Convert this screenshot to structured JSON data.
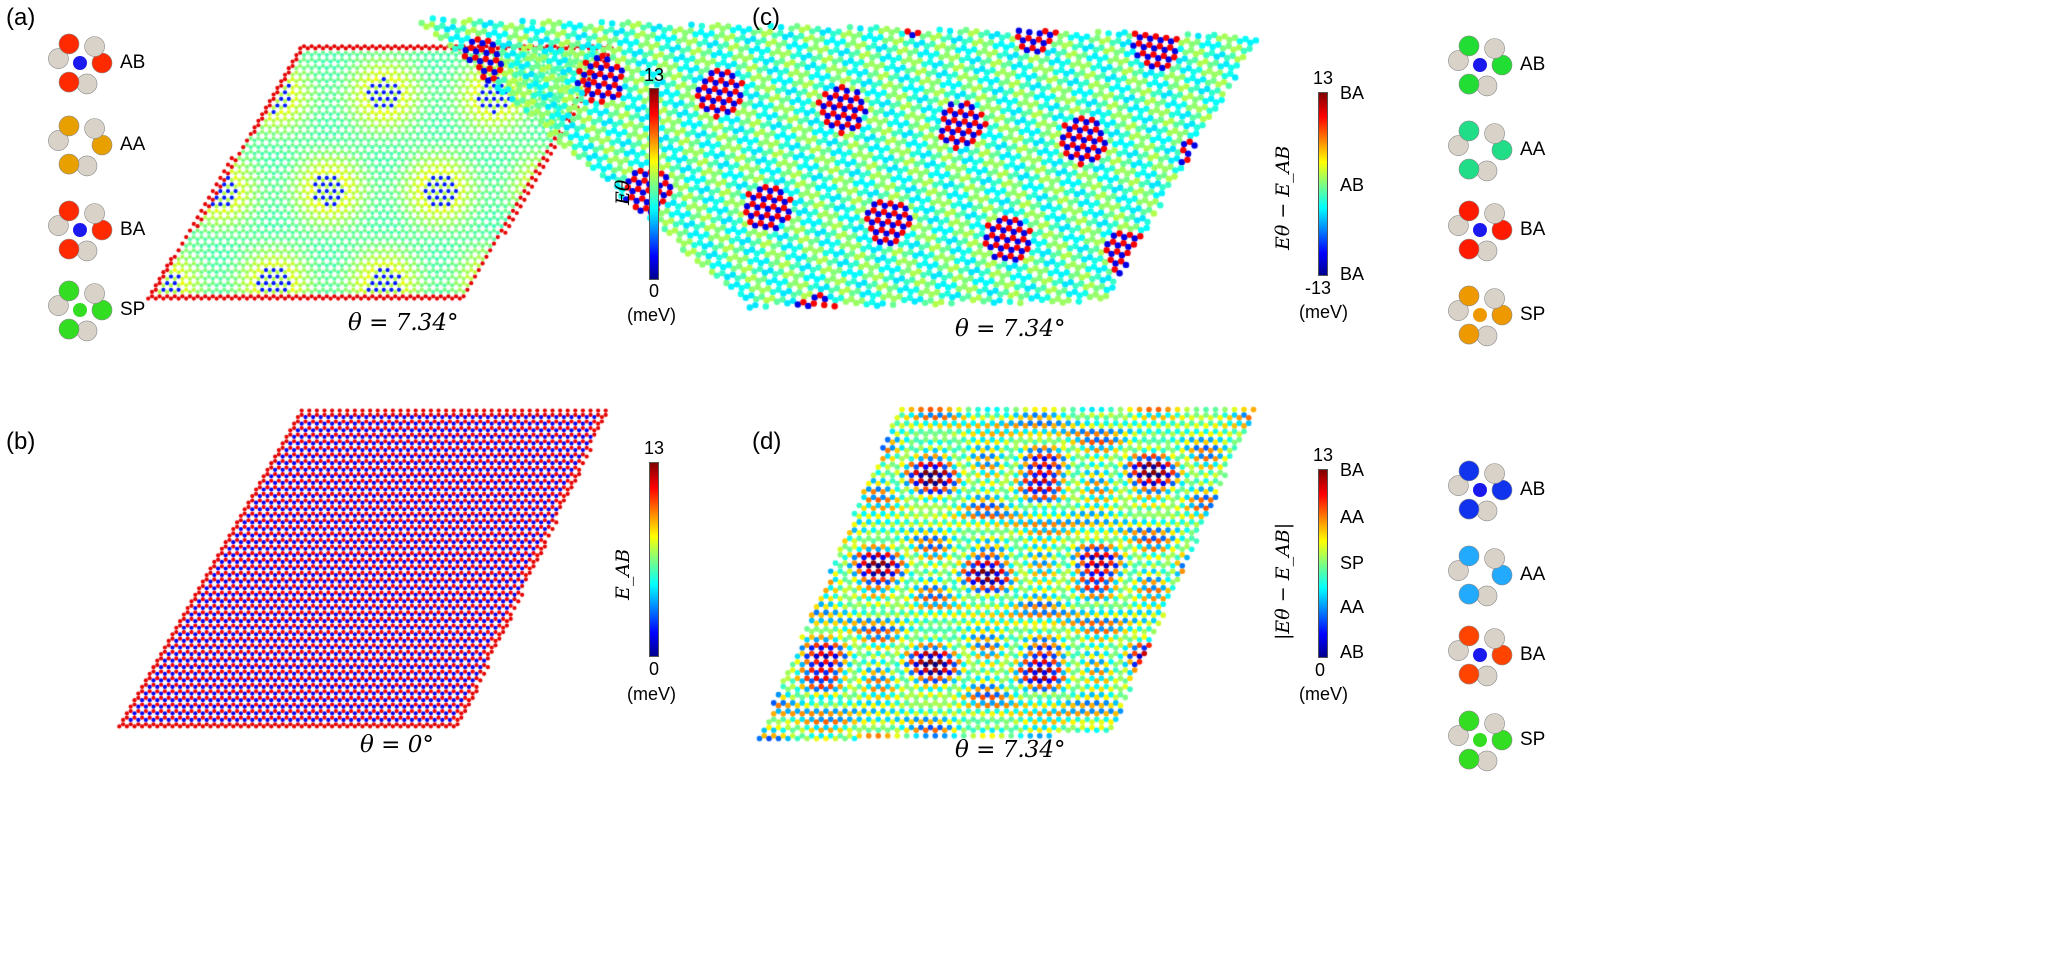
{
  "panels": {
    "a": {
      "label": "(a)",
      "theta": "θ = 7.34°",
      "colorbar": {
        "max": "13",
        "min": "0",
        "unit": "(meV)",
        "quantity": "Eθ"
      }
    },
    "b": {
      "label": "(b)",
      "theta": "θ = 0°",
      "colorbar": {
        "max": "13",
        "min": "0",
        "unit": "(meV)",
        "quantity": "E_AB"
      }
    },
    "c": {
      "label": "(c)",
      "theta": "θ = 7.34°",
      "colorbar": {
        "max": "13",
        "min": "-13",
        "unit": "(meV)",
        "quantity": "Eθ − E_AB",
        "stack_labels": [
          "BA",
          "AB",
          "BA"
        ]
      }
    },
    "d": {
      "label": "(d)",
      "theta": "θ = 7.34°",
      "colorbar": {
        "max": "13",
        "min": "0",
        "unit": "(meV)",
        "quantity": "|Eθ − E_AB|",
        "stack_labels": [
          "BA",
          "AA",
          "SP",
          "AA",
          "AB"
        ]
      }
    }
  },
  "stackings": {
    "a": [
      {
        "name": "AB",
        "color": "#ff2a00"
      },
      {
        "name": "AA",
        "color": "#e8a000"
      },
      {
        "name": "BA",
        "color": "#ff2a00"
      },
      {
        "name": "SP",
        "color": "#33dd22"
      }
    ],
    "c": [
      {
        "name": "AB",
        "color": "#22dd33"
      },
      {
        "name": "AA",
        "color": "#22dd88"
      },
      {
        "name": "BA",
        "color": "#ff1a00"
      },
      {
        "name": "SP",
        "color": "#ee9900"
      }
    ],
    "d": [
      {
        "name": "AB",
        "color": "#1133ee"
      },
      {
        "name": "AA",
        "color": "#22aaff"
      },
      {
        "name": "BA",
        "color": "#ff4400"
      },
      {
        "name": "SP",
        "color": "#33dd22"
      }
    ]
  },
  "colormap": [
    "#00008f",
    "#0000ff",
    "#00ffff",
    "#ffff00",
    "#ff0000",
    "#800000"
  ]
}
